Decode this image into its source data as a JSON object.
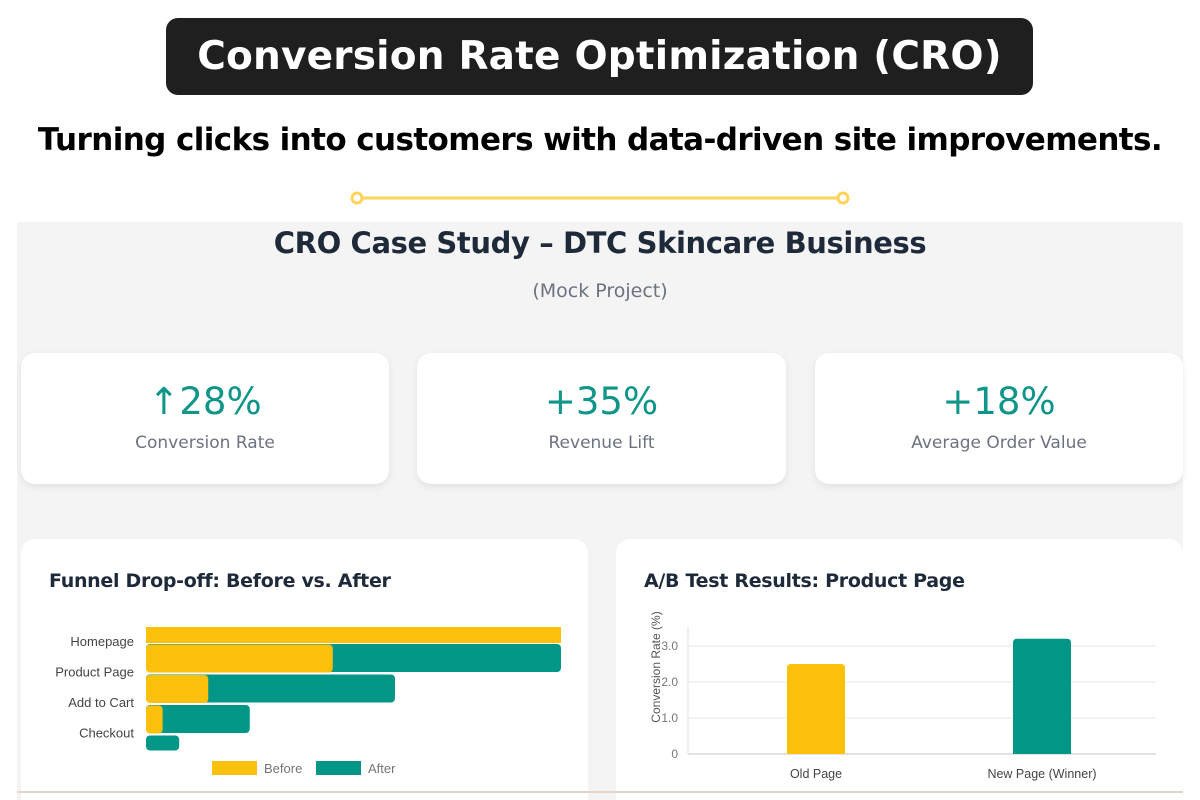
{
  "banner": {
    "title": "Conversion Rate Optimization (CRO)"
  },
  "tagline": "Turning clicks into customers with data-driven site improvements.",
  "colors": {
    "before": "#fdc00b",
    "after": "#029686",
    "accent": "#0f9688",
    "divider": "#fdd55b"
  },
  "case_study": {
    "title": "CRO Case Study – DTC Skincare Business",
    "subtitle": "(Mock Project)"
  },
  "kpis": [
    {
      "value": "↑28%",
      "label": "Conversion Rate"
    },
    {
      "value": "+35%",
      "label": "Revenue Lift"
    },
    {
      "value": "+18%",
      "label": "Average Order Value"
    }
  ],
  "chart_data": [
    {
      "type": "bar",
      "orientation": "horizontal",
      "title": "Funnel Drop-off: Before vs. After",
      "categories": [
        "Homepage",
        "Product Page",
        "Add to Cart",
        "Checkout"
      ],
      "series": [
        {
          "name": "Before",
          "values": [
            100,
            45,
            15,
            4
          ]
        },
        {
          "name": "After",
          "values": [
            100,
            60,
            25,
            8
          ]
        }
      ],
      "xlim": [
        0,
        100
      ],
      "legend": "bottom",
      "grid": false
    },
    {
      "type": "bar",
      "title": "A/B Test Results: Product Page",
      "categories": [
        "Old Page",
        "New Page (Winner)"
      ],
      "values": [
        2.5,
        3.2
      ],
      "ylabel": "Conversion Rate (%)",
      "yticks": [
        "0",
        "1.0",
        "2.0",
        "3.0"
      ],
      "ylim": [
        0,
        3.3
      ],
      "grid": true
    }
  ]
}
